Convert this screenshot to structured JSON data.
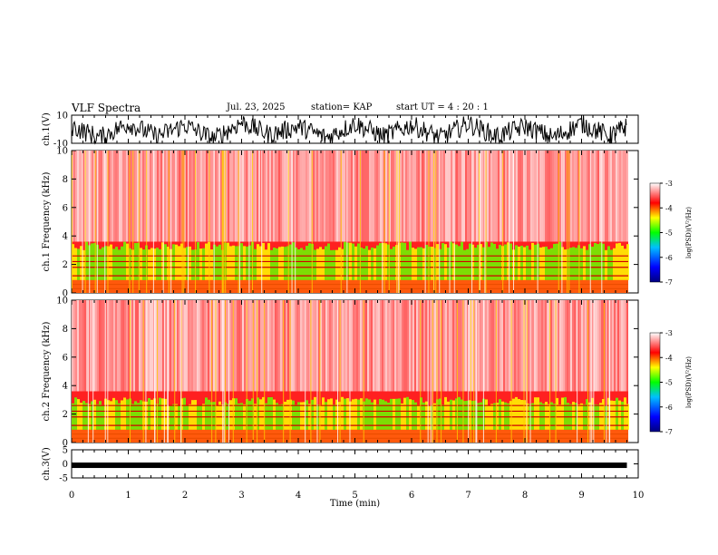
{
  "header": {
    "title": "VLF Spectra",
    "date": "Jul. 23, 2025",
    "station": "station= KAP",
    "start": "start UT =  4 : 20 : 1"
  },
  "chart_data": [
    {
      "type": "line",
      "panel": "ch1-waveform",
      "ylabel": "ch.1(V)",
      "ylim": [
        -10,
        10
      ],
      "yticks": [
        "10",
        "-10"
      ],
      "x": [
        0.0,
        0.5,
        1.0,
        1.5,
        2.0,
        2.5,
        3.0,
        3.5,
        4.0,
        4.5,
        5.0,
        5.5,
        6.0,
        6.5,
        7.0,
        7.5,
        8.0,
        8.5,
        9.0,
        9.5,
        9.8
      ],
      "y": [
        2,
        -6,
        4,
        -5,
        3,
        -7,
        5,
        -4,
        2,
        -6,
        4,
        -5,
        3,
        -6,
        4,
        -5,
        2,
        -6,
        4,
        -5,
        2
      ],
      "note_envelope": [
        -10,
        10
      ]
    },
    {
      "type": "heatmap",
      "panel": "ch1-spectrogram",
      "ylabel": "ch.1 Frequency (kHz)",
      "ylim": [
        0,
        10
      ],
      "yticks": [
        "0",
        "2",
        "4",
        "6",
        "8",
        "10"
      ],
      "xlim": [
        0,
        10
      ],
      "colorbar": {
        "label": "log(PSD)(V²/Hz)",
        "range": [
          -7,
          -3
        ],
        "ticks": [
          "-3",
          "-4",
          "-5",
          "-6",
          "-7"
        ]
      }
    },
    {
      "type": "heatmap",
      "panel": "ch2-spectrogram",
      "ylabel": "ch.2 Frequency (kHz)",
      "ylim": [
        0,
        10
      ],
      "yticks": [
        "0",
        "2",
        "4",
        "6",
        "8",
        "10"
      ],
      "xlim": [
        0,
        10
      ],
      "colorbar": {
        "label": "log(PSD)(V²/Hz)",
        "range": [
          -7,
          -3
        ],
        "ticks": [
          "-3",
          "-4",
          "-5",
          "-6",
          "-7"
        ]
      }
    },
    {
      "type": "line",
      "panel": "ch3-waveform",
      "ylabel": "ch.3(V)",
      "ylim": [
        -5,
        5
      ],
      "yticks": [
        "5",
        "0",
        "-5"
      ],
      "x": [
        0,
        9.8
      ],
      "y": [
        -0.5,
        -0.5
      ]
    }
  ],
  "xaxis": {
    "label": "Time (min)",
    "xlim": [
      0,
      10
    ],
    "ticks": [
      "0",
      "1",
      "2",
      "3",
      "4",
      "5",
      "6",
      "7",
      "8",
      "9",
      "10"
    ]
  },
  "colors": {
    "high": "#ff0000",
    "mid": "#ffff00",
    "low": "#00ff00",
    "base": "#ffffff"
  }
}
